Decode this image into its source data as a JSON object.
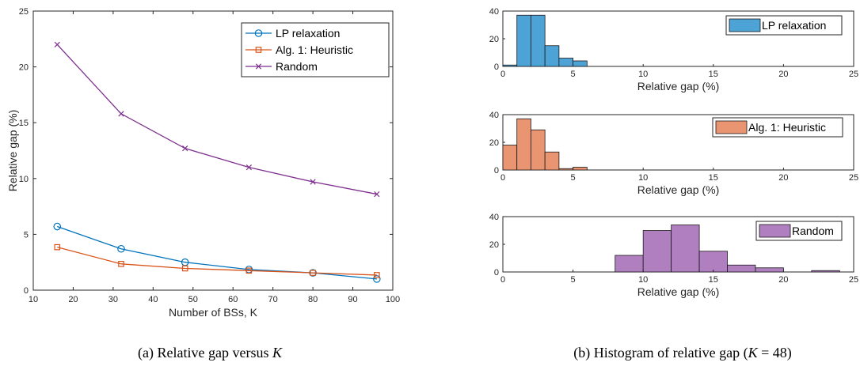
{
  "chart_data": [
    {
      "type": "line",
      "xlabel": "Number of BSs, K",
      "ylabel": "Relative gap (%)",
      "xlim": [
        10,
        100
      ],
      "ylim": [
        0,
        25
      ],
      "xticks": [
        10,
        20,
        30,
        40,
        50,
        60,
        70,
        80,
        90,
        100
      ],
      "yticks": [
        0,
        5,
        10,
        15,
        20,
        25
      ],
      "grid": false,
      "legend_position": "top-right",
      "x": [
        16,
        32,
        48,
        64,
        80,
        96
      ],
      "series": [
        {
          "name": "LP relaxation",
          "marker": "circle",
          "color": "#0072BD",
          "values": [
            5.7,
            3.7,
            2.5,
            1.85,
            1.55,
            1.0
          ]
        },
        {
          "name": "Alg. 1: Heuristic",
          "marker": "square",
          "color": "#D95319",
          "values": [
            3.85,
            2.35,
            1.95,
            1.75,
            1.55,
            1.35
          ]
        },
        {
          "name": "Random",
          "marker": "x",
          "color": "#7E2F8E",
          "values": [
            22.0,
            15.8,
            12.7,
            11.0,
            9.7,
            8.6
          ]
        }
      ]
    },
    {
      "type": "bar",
      "subtype": "histogram",
      "xlabel": "Relative gap (%)",
      "xlim": [
        0,
        25
      ],
      "ylim": [
        0,
        40
      ],
      "xticks": [
        0,
        5,
        10,
        15,
        20,
        25
      ],
      "yticks": [
        0,
        20,
        40
      ],
      "bin_width": 1,
      "legend_position": "top-right",
      "series": [
        {
          "name": "LP relaxation",
          "color": "#4EA3D6",
          "bin_edges": [
            0,
            1,
            2,
            3,
            4,
            5,
            6
          ],
          "counts": [
            1,
            37,
            37,
            15,
            6,
            4
          ]
        }
      ]
    },
    {
      "type": "bar",
      "subtype": "histogram",
      "xlabel": "Relative gap (%)",
      "xlim": [
        0,
        25
      ],
      "ylim": [
        0,
        40
      ],
      "xticks": [
        0,
        5,
        10,
        15,
        20,
        25
      ],
      "yticks": [
        0,
        20,
        40
      ],
      "bin_width": 1,
      "legend_position": "top-right",
      "series": [
        {
          "name": "Alg. 1: Heuristic",
          "color": "#E99572",
          "bin_edges": [
            0,
            1,
            2,
            3,
            4,
            5,
            6
          ],
          "counts": [
            18,
            37,
            29,
            13,
            1,
            2
          ]
        }
      ]
    },
    {
      "type": "bar",
      "subtype": "histogram",
      "xlabel": "Relative gap (%)",
      "xlim": [
        0,
        25
      ],
      "ylim": [
        0,
        40
      ],
      "xticks": [
        0,
        5,
        10,
        15,
        20,
        25
      ],
      "yticks": [
        0,
        20,
        40
      ],
      "bin_width": 2,
      "legend_position": "top-right",
      "series": [
        {
          "name": "Random",
          "color": "#B07FBF",
          "bin_edges": [
            8,
            10,
            12,
            14,
            16,
            18,
            20,
            22,
            24
          ],
          "counts": [
            12,
            30,
            34,
            15,
            5,
            3,
            0,
            1
          ]
        }
      ]
    }
  ],
  "captions": {
    "a_prefix": "(a) Relative gap versus ",
    "a_math": "K",
    "b_prefix": "(b) Histogram of relative gap (",
    "b_math": "K",
    "b_suffix": " = 48)"
  }
}
